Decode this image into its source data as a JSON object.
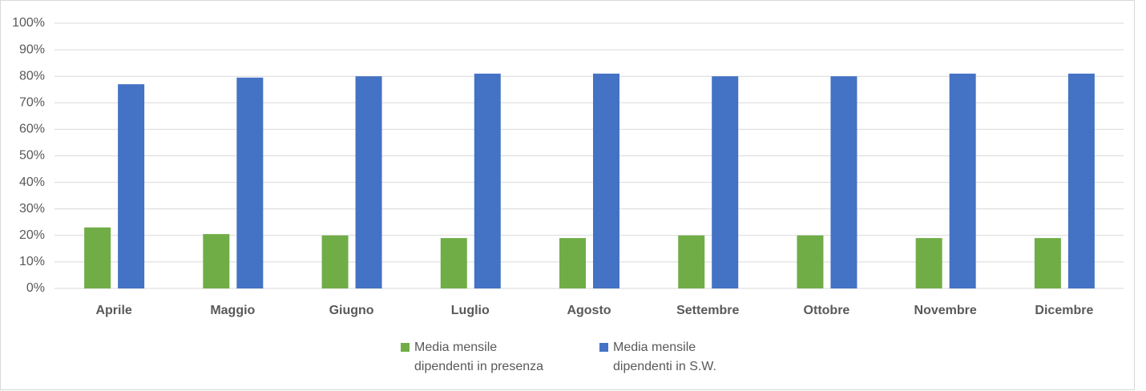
{
  "chart_data": {
    "type": "bar",
    "categories": [
      "Aprile",
      "Maggio",
      "Giugno",
      "Luglio",
      "Agosto",
      "Settembre",
      "Ottobre",
      "Novembre",
      "Dicembre"
    ],
    "series": [
      {
        "name": "Media mensile dipendenti in presenza",
        "color": "#70ad47",
        "values": [
          23,
          20.5,
          20,
          19,
          19,
          20,
          20,
          19,
          19
        ]
      },
      {
        "name": "Media mensile dipendenti in S.W.",
        "color": "#4472c4",
        "values": [
          77,
          79.5,
          80,
          81,
          81,
          80,
          80,
          81,
          81
        ]
      }
    ],
    "ylim": [
      0,
      100
    ],
    "yticks": [
      {
        "value": 0,
        "label": "0%"
      },
      {
        "value": 10,
        "label": "10%"
      },
      {
        "value": 20,
        "label": "20%"
      },
      {
        "value": 30,
        "label": "30%"
      },
      {
        "value": 40,
        "label": "40%"
      },
      {
        "value": 50,
        "label": "50%"
      },
      {
        "value": 60,
        "label": "60%"
      },
      {
        "value": 70,
        "label": "70%"
      },
      {
        "value": 80,
        "label": "80%"
      },
      {
        "value": 90,
        "label": "90%"
      },
      {
        "value": 100,
        "label": "100%"
      }
    ],
    "grid": true,
    "legend": "bottom"
  }
}
